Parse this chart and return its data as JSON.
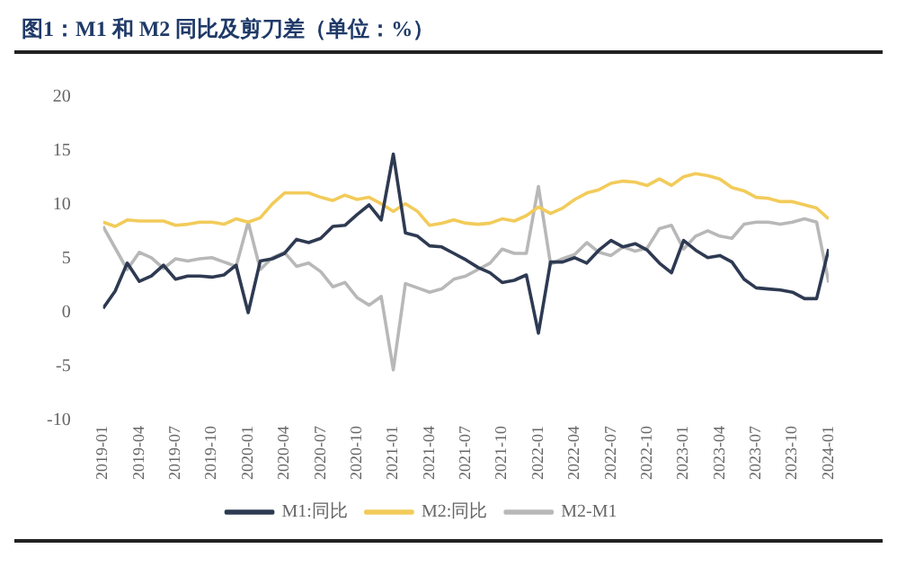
{
  "chart_data": {
    "type": "line",
    "title": "图1：M1 和 M2 同比及剪刀差（单位：%）",
    "x": [
      "2019-01",
      "2019-02",
      "2019-03",
      "2019-04",
      "2019-05",
      "2019-06",
      "2019-07",
      "2019-08",
      "2019-09",
      "2019-10",
      "2019-11",
      "2019-12",
      "2020-01",
      "2020-02",
      "2020-03",
      "2020-04",
      "2020-05",
      "2020-06",
      "2020-07",
      "2020-08",
      "2020-09",
      "2020-10",
      "2020-11",
      "2020-12",
      "2021-01",
      "2021-02",
      "2021-03",
      "2021-04",
      "2021-05",
      "2021-06",
      "2021-07",
      "2021-08",
      "2021-09",
      "2021-10",
      "2021-11",
      "2021-12",
      "2022-01",
      "2022-02",
      "2022-03",
      "2022-04",
      "2022-05",
      "2022-06",
      "2022-07",
      "2022-08",
      "2022-09",
      "2022-10",
      "2022-11",
      "2022-12",
      "2023-01",
      "2023-02",
      "2023-03",
      "2023-04",
      "2023-05",
      "2023-06",
      "2023-07",
      "2023-08",
      "2023-09",
      "2023-10",
      "2023-11",
      "2023-12",
      "2024-01"
    ],
    "series": [
      {
        "name": "M1:同比",
        "color": "#2e3a52",
        "values": [
          0.4,
          2.0,
          4.6,
          2.9,
          3.4,
          4.4,
          3.1,
          3.4,
          3.4,
          3.3,
          3.5,
          4.4,
          0.0,
          4.8,
          5.0,
          5.5,
          6.8,
          6.5,
          6.9,
          8.0,
          8.1,
          9.1,
          10.0,
          8.6,
          14.7,
          7.4,
          7.1,
          6.2,
          6.1,
          5.5,
          4.9,
          4.2,
          3.7,
          2.8,
          3.0,
          3.5,
          -1.9,
          4.7,
          4.7,
          5.1,
          4.6,
          5.8,
          6.7,
          6.1,
          6.4,
          5.8,
          4.6,
          3.7,
          6.7,
          5.8,
          5.1,
          5.3,
          4.7,
          3.1,
          2.3,
          2.2,
          2.1,
          1.9,
          1.3,
          1.3,
          5.9
        ]
      },
      {
        "name": "M2:同比",
        "color": "#f2cb5a",
        "values": [
          8.4,
          8.0,
          8.6,
          8.5,
          8.5,
          8.5,
          8.1,
          8.2,
          8.4,
          8.4,
          8.2,
          8.7,
          8.4,
          8.8,
          10.1,
          11.1,
          11.1,
          11.1,
          10.7,
          10.4,
          10.9,
          10.5,
          10.7,
          10.1,
          9.4,
          10.1,
          9.4,
          8.1,
          8.3,
          8.6,
          8.3,
          8.2,
          8.3,
          8.7,
          8.5,
          9.0,
          9.8,
          9.2,
          9.7,
          10.5,
          11.1,
          11.4,
          12.0,
          12.2,
          12.1,
          11.8,
          12.4,
          11.8,
          12.6,
          12.9,
          12.7,
          12.4,
          11.6,
          11.3,
          10.7,
          10.6,
          10.3,
          10.3,
          10.0,
          9.7,
          8.7
        ]
      },
      {
        "name": "M2-M1",
        "color": "#b8b8b8",
        "values": [
          8.0,
          6.0,
          4.0,
          5.6,
          5.1,
          4.1,
          5.0,
          4.8,
          5.0,
          5.1,
          4.7,
          4.3,
          8.4,
          4.0,
          5.1,
          5.6,
          4.3,
          4.6,
          3.8,
          2.4,
          2.8,
          1.4,
          0.7,
          1.5,
          -5.3,
          2.7,
          2.3,
          1.9,
          2.2,
          3.1,
          3.4,
          4.0,
          4.6,
          5.9,
          5.5,
          5.5,
          11.7,
          4.5,
          5.0,
          5.4,
          6.5,
          5.6,
          5.3,
          6.1,
          5.7,
          6.0,
          7.8,
          8.1,
          5.9,
          7.1,
          7.6,
          7.1,
          6.9,
          8.2,
          8.4,
          8.4,
          8.2,
          8.4,
          8.7,
          8.4,
          2.8
        ]
      }
    ],
    "ylim": [
      -10,
      20
    ],
    "yticks": [
      -10,
      -5,
      0,
      5,
      10,
      15,
      20
    ],
    "xlim": [
      "2019-01",
      "2024-01"
    ],
    "xticks": [
      "2019-01",
      "2019-04",
      "2019-07",
      "2019-10",
      "2020-01",
      "2020-04",
      "2020-07",
      "2020-10",
      "2021-01",
      "2021-04",
      "2021-07",
      "2021-10",
      "2022-01",
      "2022-04",
      "2022-07",
      "2022-10",
      "2023-01",
      "2023-04",
      "2023-07",
      "2023-10",
      "2024-01"
    ],
    "grid": false,
    "legend": "bottom",
    "marker": "none",
    "line_style": "solid"
  }
}
